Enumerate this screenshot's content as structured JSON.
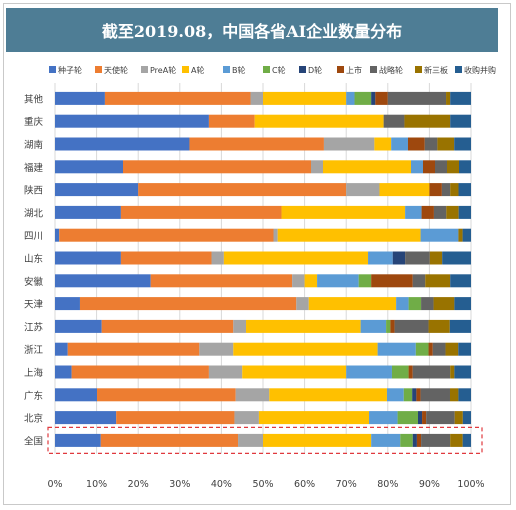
{
  "chart_data": {
    "type": "bar",
    "orientation": "horizontal",
    "stacked": "percent",
    "title": "截至2019.08，中国各省AI企业数量分布",
    "legend_position": "top",
    "grid": true,
    "xlim": [
      0,
      100
    ],
    "x_ticks": [
      "0%",
      "10%",
      "20%",
      "30%",
      "40%",
      "50%",
      "60%",
      "70%",
      "80%",
      "90%",
      "100%"
    ],
    "categories": [
      "其他",
      "重庆",
      "湖南",
      "福建",
      "陕西",
      "湖北",
      "四川",
      "山东",
      "安徽",
      "天津",
      "江苏",
      "浙江",
      "上海",
      "广东",
      "北京",
      "全国"
    ],
    "highlighted_category": "全国",
    "series": [
      {
        "name": "种子轮",
        "color": "#4472c4",
        "values": [
          12,
          37,
          32,
          17,
          20,
          16,
          1,
          16,
          23,
          6,
          11,
          3,
          4,
          10,
          15,
          11
        ]
      },
      {
        "name": "天使轮",
        "color": "#ed7d31",
        "values": [
          35,
          11,
          32,
          47,
          50,
          39,
          51,
          22,
          34,
          52,
          31,
          31,
          33,
          33,
          29,
          33
        ]
      },
      {
        "name": "PreA轮",
        "color": "#a5a5a5",
        "values": [
          3,
          0,
          12,
          3,
          8,
          0,
          1,
          3,
          3,
          3,
          3,
          8,
          8,
          8,
          6,
          6
        ]
      },
      {
        "name": "A轮",
        "color": "#ffc000",
        "values": [
          20,
          31,
          4,
          22,
          12,
          30,
          34,
          35,
          3,
          21,
          27,
          34,
          25,
          28,
          27,
          26
        ]
      },
      {
        "name": "B轮",
        "color": "#5b9bd5",
        "values": [
          2,
          0,
          4,
          3,
          0,
          4,
          9,
          6,
          10,
          3,
          6,
          9,
          11,
          4,
          7,
          7
        ]
      },
      {
        "name": "C轮",
        "color": "#70ad47",
        "values": [
          4,
          0,
          0,
          0,
          0,
          0,
          0,
          0,
          3,
          3,
          1,
          3,
          4,
          2,
          5,
          3
        ]
      },
      {
        "name": "D轮",
        "color": "#264478",
        "values": [
          1,
          0,
          0,
          0,
          0,
          0,
          0,
          3,
          0,
          0,
          0,
          0,
          0,
          1,
          1,
          1
        ]
      },
      {
        "name": "上市",
        "color": "#9e480e",
        "values": [
          3,
          0,
          4,
          3,
          3,
          3,
          0,
          0,
          10,
          0,
          1,
          1,
          1,
          1,
          1,
          1
        ]
      },
      {
        "name": "战略轮",
        "color": "#636363",
        "values": [
          14,
          5,
          3,
          3,
          2,
          3,
          0,
          6,
          3,
          3,
          8,
          3,
          9,
          7,
          7,
          7
        ]
      },
      {
        "name": "新三板",
        "color": "#997300",
        "values": [
          1,
          11,
          4,
          3,
          2,
          3,
          1,
          3,
          6,
          5,
          5,
          3,
          1,
          2,
          2,
          3
        ]
      },
      {
        "name": "收购并购",
        "color": "#255e91",
        "values": [
          5,
          5,
          4,
          3,
          3,
          3,
          2,
          7,
          5,
          4,
          5,
          3,
          4,
          3,
          2,
          2
        ]
      }
    ]
  }
}
